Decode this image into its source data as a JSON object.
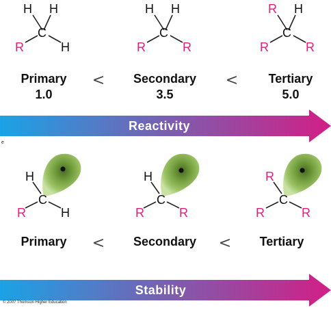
{
  "atoms": {
    "H": "H",
    "C": "C",
    "R": "R"
  },
  "colors": {
    "substituent": "#e8197c",
    "text": "#111111",
    "arrow_start": "#1aa3e6",
    "arrow_end": "#d21f86",
    "lobe": "#6f9a3a"
  },
  "row1": {
    "labels": [
      "Primary",
      "Secondary",
      "Tertiary"
    ],
    "values": [
      "1.0",
      "3.5",
      "5.0"
    ],
    "separator": "<",
    "arrow_label": "Reactivity"
  },
  "row2": {
    "labels": [
      "Primary",
      "Secondary",
      "Tertiary"
    ],
    "separator": "<",
    "arrow_label": "Stability"
  },
  "footer": {
    "copyright": "© 2007 Thomson Higher Education",
    "mark": "e"
  }
}
